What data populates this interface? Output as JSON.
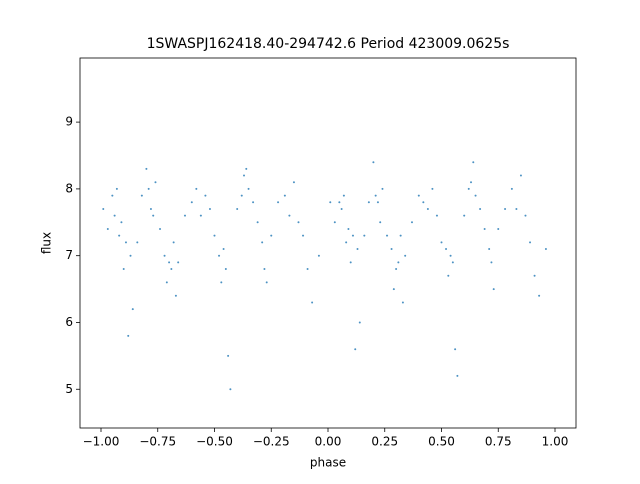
{
  "chart_data": {
    "type": "scatter",
    "title": "1SWASPJ162418.40-294742.6 Period 423009.0625s",
    "x_label": "phase",
    "y_label": "flux",
    "color": "#1f77b4",
    "xlim": [
      -1.0925,
      1.0925
    ],
    "ylim": [
      4.42,
      9.96
    ],
    "xticks": [
      {
        "value": -1,
        "label": "−1.00"
      },
      {
        "value": -0.75,
        "label": "−0.75"
      },
      {
        "value": -0.5,
        "label": "−0.50"
      },
      {
        "value": -0.25,
        "label": "−0.25"
      },
      {
        "value": 0,
        "label": "0.00"
      },
      {
        "value": 0.25,
        "label": "0.25"
      },
      {
        "value": 0.5,
        "label": "0.50"
      },
      {
        "value": 0.75,
        "label": "0.75"
      },
      {
        "value": 1,
        "label": "1.00"
      }
    ],
    "yticks": [
      5,
      6,
      7,
      8,
      9
    ],
    "x": [
      -0.99,
      -0.97,
      -0.95,
      -0.94,
      -0.93,
      -0.92,
      -0.91,
      -0.9,
      -0.89,
      -0.88,
      -0.87,
      -0.86,
      -0.84,
      -0.82,
      -0.8,
      -0.79,
      -0.78,
      -0.77,
      -0.76,
      -0.74,
      -0.72,
      -0.71,
      -0.7,
      -0.69,
      -0.68,
      -0.67,
      -0.66,
      -0.63,
      -0.6,
      -0.58,
      -0.56,
      -0.54,
      -0.52,
      -0.5,
      -0.48,
      -0.47,
      -0.46,
      -0.45,
      -0.44,
      -0.43,
      -0.4,
      -0.38,
      -0.37,
      -0.36,
      -0.35,
      -0.33,
      -0.31,
      -0.29,
      -0.28,
      -0.27,
      -0.25,
      -0.22,
      -0.19,
      -0.17,
      -0.15,
      -0.13,
      -0.11,
      -0.09,
      -0.07,
      -0.04,
      0.01,
      0.03,
      0.05,
      0.06,
      0.07,
      0.08,
      0.09,
      0.1,
      0.11,
      0.12,
      0.13,
      0.14,
      0.16,
      0.18,
      0.2,
      0.21,
      0.22,
      0.23,
      0.24,
      0.26,
      0.28,
      0.29,
      0.3,
      0.31,
      0.32,
      0.33,
      0.34,
      0.37,
      0.4,
      0.42,
      0.44,
      0.46,
      0.48,
      0.5,
      0.52,
      0.53,
      0.54,
      0.55,
      0.56,
      0.57,
      0.6,
      0.62,
      0.63,
      0.64,
      0.65,
      0.67,
      0.69,
      0.71,
      0.72,
      0.73,
      0.75,
      0.78,
      0.81,
      0.83,
      0.85,
      0.87,
      0.89,
      0.91,
      0.93,
      0.96
    ],
    "values": [
      7.7,
      7.4,
      7.9,
      7.6,
      8.0,
      7.3,
      7.5,
      6.8,
      7.2,
      5.8,
      7.0,
      6.2,
      7.2,
      7.9,
      8.3,
      8.0,
      7.7,
      7.6,
      8.1,
      7.4,
      7.0,
      6.6,
      6.9,
      6.8,
      7.2,
      6.4,
      6.9,
      7.6,
      7.8,
      8.0,
      7.6,
      7.9,
      7.7,
      7.3,
      7.0,
      6.6,
      7.1,
      6.8,
      5.5,
      5.0,
      7.7,
      7.9,
      8.2,
      8.3,
      8.0,
      7.8,
      7.5,
      7.2,
      6.8,
      6.6,
      7.3,
      7.8,
      7.9,
      7.6,
      8.1,
      7.5,
      7.3,
      6.8,
      6.3,
      7.0,
      7.8,
      7.5,
      7.8,
      7.7,
      7.9,
      7.2,
      7.4,
      6.9,
      7.3,
      5.6,
      7.1,
      6.0,
      7.3,
      7.8,
      8.4,
      7.9,
      7.8,
      7.5,
      8.0,
      7.3,
      7.1,
      6.5,
      6.8,
      6.9,
      7.3,
      6.3,
      7.0,
      7.5,
      7.9,
      7.8,
      7.7,
      8.0,
      7.6,
      7.2,
      7.1,
      6.7,
      7.0,
      6.9,
      5.6,
      5.2,
      7.6,
      8.0,
      8.1,
      8.4,
      7.9,
      7.7,
      7.4,
      7.1,
      6.9,
      6.5,
      7.4,
      7.7,
      8.0,
      7.7,
      8.2,
      7.6,
      7.2,
      6.7,
      6.4,
      7.1
    ]
  }
}
